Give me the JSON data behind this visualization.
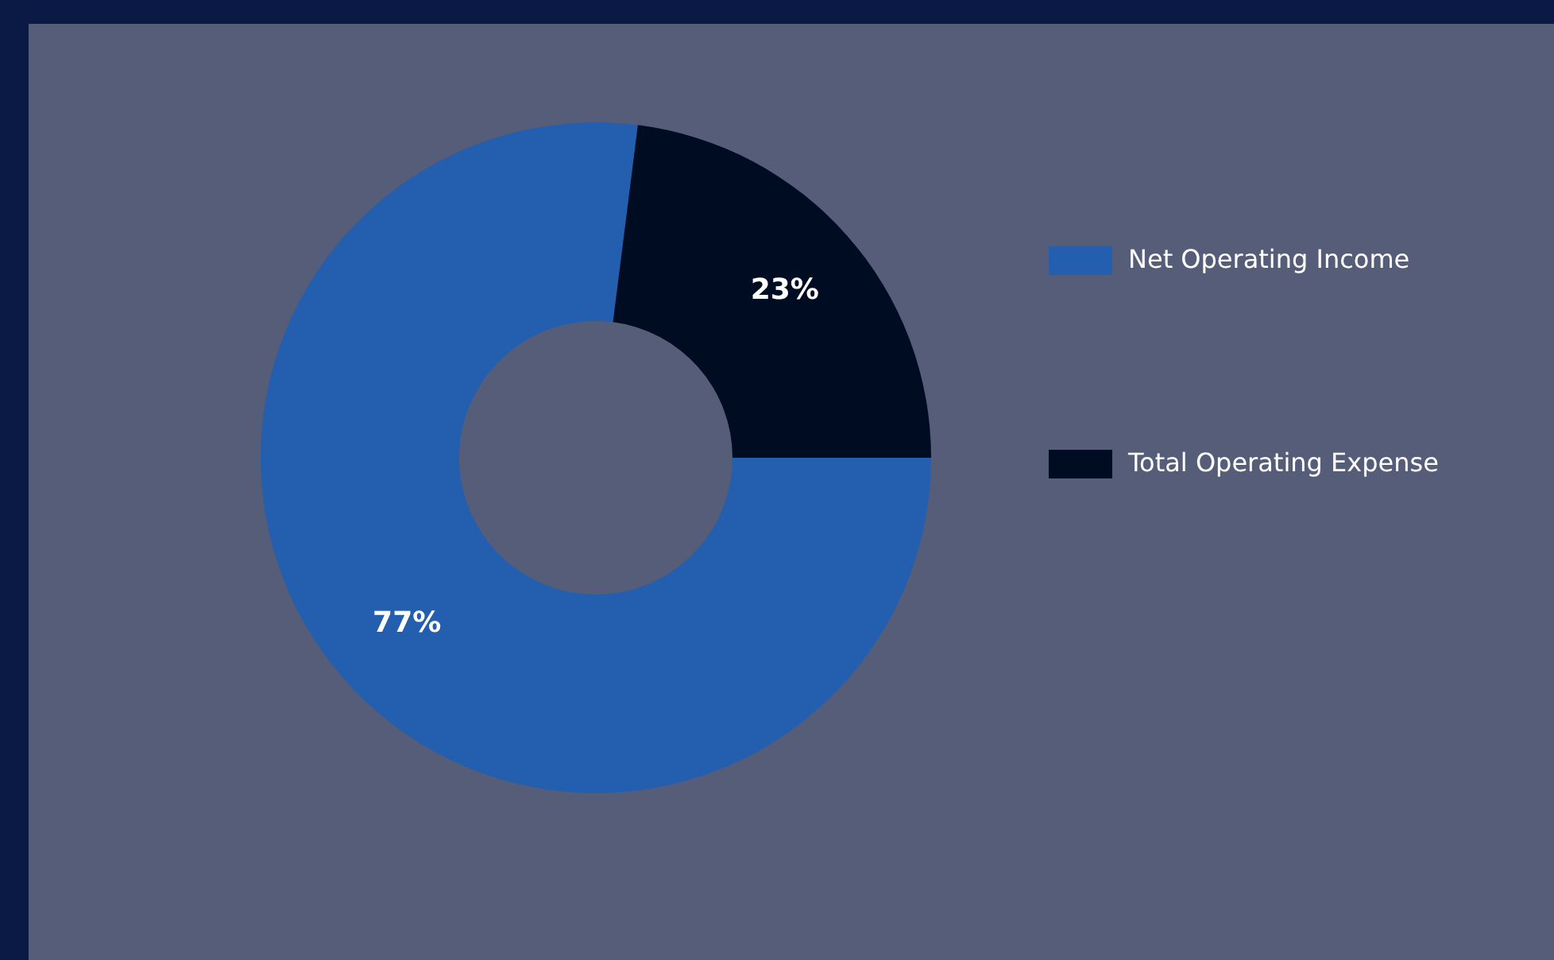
{
  "chart_data": {
    "type": "donut",
    "categories": [
      "Net Operating Income",
      "Total Operating Expense"
    ],
    "values": [
      77,
      23
    ],
    "colors": [
      "#235fae",
      "#000c22"
    ],
    "value_labels": [
      "77%",
      "23%"
    ],
    "legend": "right"
  }
}
